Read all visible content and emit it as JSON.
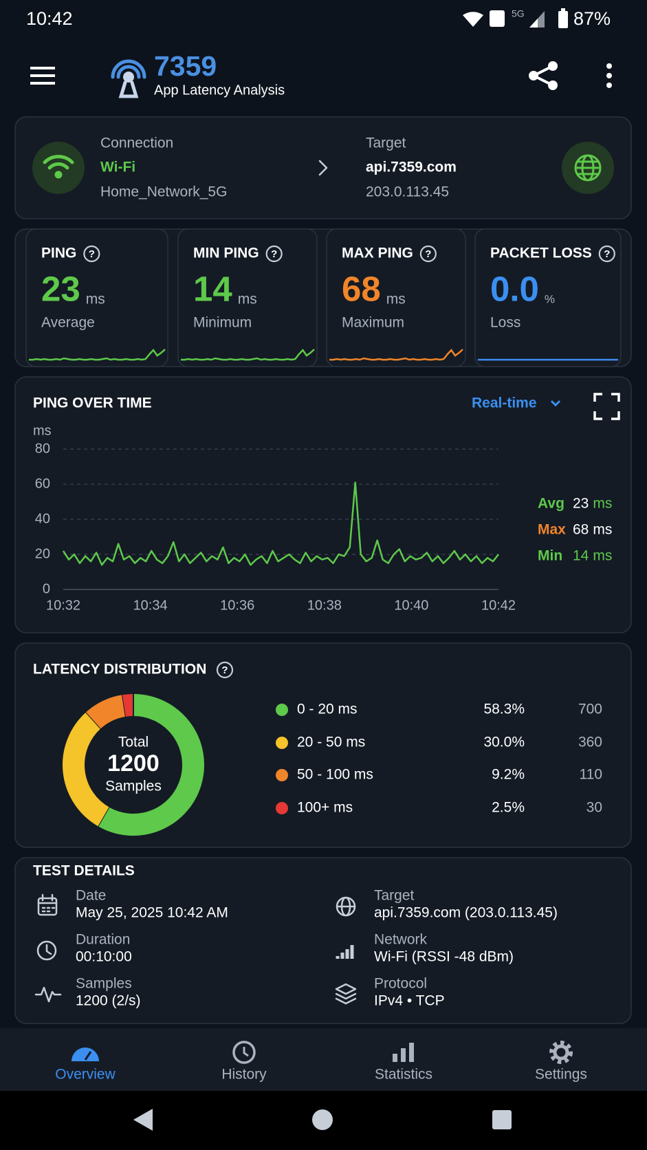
{
  "status_bar": {
    "time": "10:42",
    "network": "5G",
    "battery": "87%"
  },
  "app_bar": {
    "title": "7359",
    "subtitle": "App Latency Analysis"
  },
  "connection": {
    "label": "Connection",
    "type": "Wi-Fi",
    "ssid": "Home_Network_5G",
    "target_label": "Target",
    "target_host": "api.7359.com",
    "target_ip": "203.0.113.45"
  },
  "stats": [
    {
      "title": "PING",
      "value": 23,
      "unit": "ms",
      "caption": "Average",
      "color": "#5ec94a"
    },
    {
      "title": "MIN PING",
      "value": 14,
      "unit": "ms",
      "caption": "Minimum",
      "color": "#5ec94a"
    },
    {
      "title": "MAX PING",
      "value": 68,
      "unit": "ms",
      "caption": "Maximum",
      "color": "#f0852a"
    },
    {
      "title": "PACKET LOSS",
      "value": "0.0",
      "unit": "%",
      "caption": "Loss",
      "color": "#3b8ff0"
    }
  ],
  "ping_chart": {
    "type": "line",
    "title": "PING OVER TIME",
    "range": "Real-time",
    "y_label": "ms",
    "ylim": [
      0,
      80
    ],
    "yticks": [
      0,
      20,
      40,
      60,
      80
    ],
    "grid": true,
    "color": "#5ec94a",
    "xticks": [
      "10:32",
      "10:34",
      "10:36",
      "10:38",
      "10:40",
      "10:42"
    ],
    "values": [
      22,
      17,
      20,
      15,
      19,
      16,
      21,
      14,
      18,
      16,
      26,
      17,
      19,
      15,
      18,
      16,
      22,
      17,
      15,
      19,
      27,
      16,
      20,
      15,
      18,
      21,
      16,
      19,
      17,
      24,
      15,
      18,
      16,
      20,
      14,
      17,
      19,
      15,
      22,
      16,
      18,
      20,
      17,
      15,
      21,
      16,
      19,
      17,
      18,
      15,
      20,
      19,
      24,
      61,
      20,
      16,
      18,
      28,
      17,
      15,
      20,
      23,
      16,
      19,
      17,
      18,
      21,
      16,
      19,
      15,
      18,
      22,
      17,
      20,
      16,
      19,
      15,
      18,
      16,
      20
    ],
    "legend": [
      {
        "name": "Avg",
        "value": 23,
        "unit": "ms",
        "name_color": "#5ec94a",
        "value_color": "#ffffff",
        "unit_color": "#5ec94a"
      },
      {
        "name": "Max",
        "value": 68,
        "unit": "ms",
        "name_color": "#f0852a",
        "value_color": "#ffffff",
        "unit_color": "#ffffff"
      },
      {
        "name": "Min",
        "value": 14,
        "unit": "ms",
        "name_color": "#5ec94a",
        "value_color": "#5ec94a",
        "unit_color": "#5ec94a"
      }
    ]
  },
  "latency_distribution": {
    "type": "donut",
    "title": "LATENCY DISTRIBUTION",
    "total_label": "Total",
    "total": 1200,
    "total_unit": "Samples",
    "rows": [
      {
        "label": "0 - 20 ms",
        "percent": "58.3%",
        "count": 700,
        "color": "#5ec94a"
      },
      {
        "label": "20 - 50 ms",
        "percent": "30.0%",
        "count": 360,
        "color": "#f5c32a"
      },
      {
        "label": "50 - 100 ms",
        "percent": "9.2%",
        "count": 110,
        "color": "#f0852a"
      },
      {
        "label": "100+ ms",
        "percent": "2.5%",
        "count": 30,
        "color": "#e53935"
      }
    ]
  },
  "test_details": {
    "title": "TEST DETAILS",
    "items": [
      {
        "label": "Date",
        "value": "May 25, 2025 10:42 AM"
      },
      {
        "label": "Target",
        "value": "api.7359.com (203.0.113.45)"
      },
      {
        "label": "Duration",
        "value": "00:10:00"
      },
      {
        "label": "Network",
        "value": "Wi-Fi (RSSI -48 dBm)"
      },
      {
        "label": "Samples",
        "value": "1200 (2/s)"
      },
      {
        "label": "Protocol",
        "value": "IPv4 • TCP"
      }
    ]
  },
  "bottom_nav": [
    {
      "label": "Overview",
      "active": true
    },
    {
      "label": "History",
      "active": false
    },
    {
      "label": "Statistics",
      "active": false
    },
    {
      "label": "Settings",
      "active": false
    }
  ]
}
